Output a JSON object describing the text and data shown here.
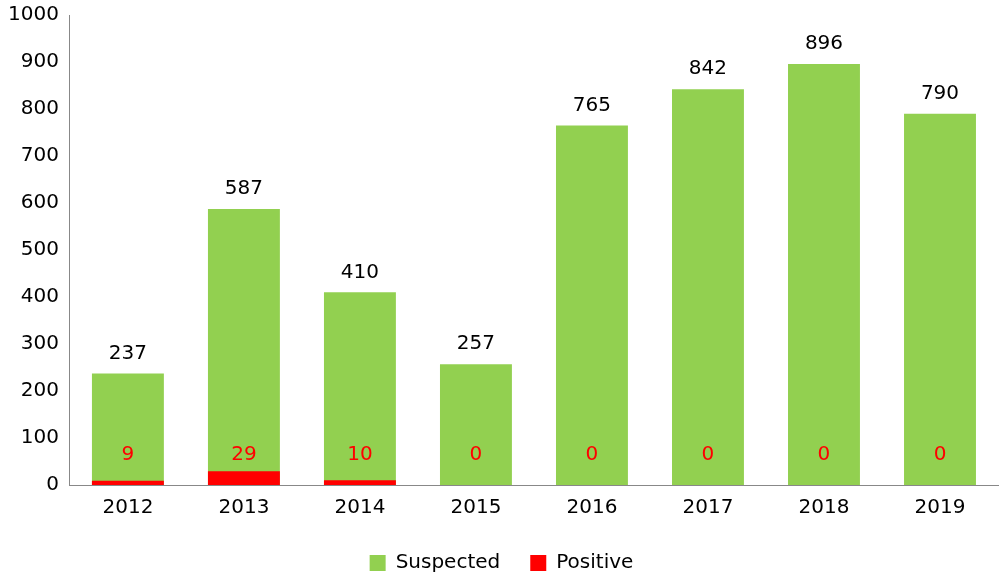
{
  "chart_data": {
    "type": "bar",
    "categories": [
      "2012",
      "2013",
      "2014",
      "2015",
      "2016",
      "2017",
      "2018",
      "2019"
    ],
    "series": [
      {
        "name": "Suspected",
        "color": "#92d050",
        "values": [
          237,
          587,
          410,
          257,
          765,
          842,
          896,
          790
        ]
      },
      {
        "name": "Positive",
        "color": "#ff0000",
        "values": [
          9,
          29,
          10,
          0,
          0,
          0,
          0,
          0
        ]
      }
    ],
    "ylim": [
      0,
      1000
    ],
    "yticks": [
      0,
      100,
      200,
      300,
      400,
      500,
      600,
      700,
      800,
      900,
      1000
    ],
    "grid": false,
    "legend": "bottom",
    "data_labels": true
  }
}
